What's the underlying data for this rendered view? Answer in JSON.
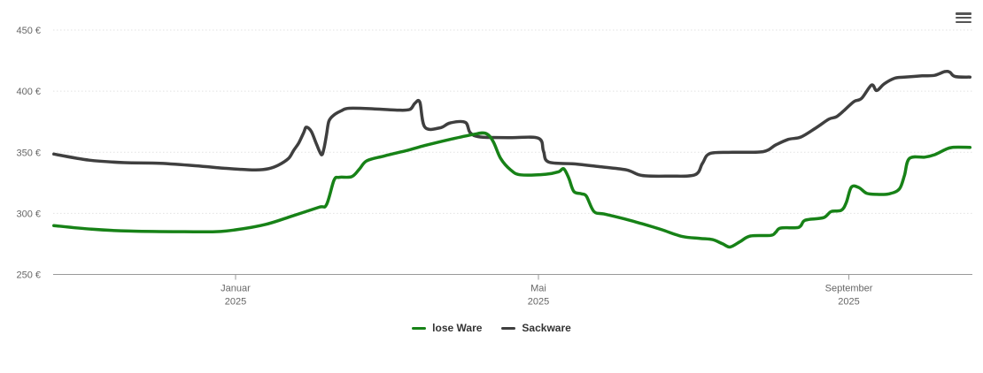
{
  "page": {
    "background": "#ffffff"
  },
  "toolbar": {
    "context_menu_icon": "hamburger-menu-icon"
  },
  "chart": {
    "y_axis": {
      "ticks": [
        {
          "label": "450 €",
          "value": 450
        },
        {
          "label": "400 €",
          "value": 400
        },
        {
          "label": "350 €",
          "value": 350
        },
        {
          "label": "300 €",
          "value": 300
        },
        {
          "label": "250 €",
          "value": 250
        }
      ]
    },
    "x_axis": {
      "ticks": [
        {
          "line1": "Januar",
          "line2": "2025",
          "date": "2025-01-01"
        },
        {
          "line1": "Mai",
          "line2": "2025",
          "date": "2025-05-01"
        },
        {
          "line1": "September",
          "line2": "2025",
          "date": "2025-09-01"
        }
      ]
    },
    "legend": {
      "items": [
        {
          "label": "lose Ware",
          "color": "#178217"
        },
        {
          "label": "Sackware",
          "color": "#3f3f3f"
        }
      ]
    },
    "colors": {
      "grid": "#e2e2e2",
      "axis_line": "#999999",
      "axis_text": "#666666",
      "legend_text": "#333333",
      "menu_icon": "#555555"
    }
  },
  "chart_data": {
    "type": "line",
    "title": "",
    "xlabel": "",
    "ylabel": "",
    "ylabel_format": "{value} €",
    "ylim": [
      250,
      450
    ],
    "x_range": [
      "2024-10-21",
      "2025-10-19"
    ],
    "grid": "dotted-horizontal",
    "legend_position": "bottom-center",
    "series": [
      {
        "name": "lose Ware",
        "color": "#178217",
        "points": [
          [
            "2024-10-21",
            290
          ],
          [
            "2024-11-05",
            287
          ],
          [
            "2024-11-20",
            285.5
          ],
          [
            "2024-12-08",
            285
          ],
          [
            "2024-12-24",
            285
          ],
          [
            "2025-01-01",
            286.5
          ],
          [
            "2025-01-13",
            291
          ],
          [
            "2025-01-23",
            297.5
          ],
          [
            "2025-02-03",
            305
          ],
          [
            "2025-02-06",
            307
          ],
          [
            "2025-02-09",
            327
          ],
          [
            "2025-02-11",
            329.5
          ],
          [
            "2025-02-16",
            330
          ],
          [
            "2025-02-19",
            336
          ],
          [
            "2025-02-22",
            343
          ],
          [
            "2025-03-01",
            347
          ],
          [
            "2025-03-10",
            351.5
          ],
          [
            "2025-03-17",
            355.5
          ],
          [
            "2025-03-27",
            360.5
          ],
          [
            "2025-04-05",
            364.5
          ],
          [
            "2025-04-10",
            365.5
          ],
          [
            "2025-04-13",
            359
          ],
          [
            "2025-04-16",
            345
          ],
          [
            "2025-04-20",
            335.5
          ],
          [
            "2025-04-24",
            331.5
          ],
          [
            "2025-05-04",
            332
          ],
          [
            "2025-05-09",
            334
          ],
          [
            "2025-05-11",
            336.5
          ],
          [
            "2025-05-13",
            329
          ],
          [
            "2025-05-15",
            318
          ],
          [
            "2025-05-18",
            316
          ],
          [
            "2025-05-20",
            314
          ],
          [
            "2025-05-23",
            301.5
          ],
          [
            "2025-05-27",
            299.5
          ],
          [
            "2025-06-04",
            295.5
          ],
          [
            "2025-06-11",
            291.5
          ],
          [
            "2025-06-19",
            286.5
          ],
          [
            "2025-06-27",
            281
          ],
          [
            "2025-07-04",
            279.5
          ],
          [
            "2025-07-09",
            278.5
          ],
          [
            "2025-07-13",
            275
          ],
          [
            "2025-07-16",
            272.5
          ],
          [
            "2025-07-20",
            277
          ],
          [
            "2025-07-24",
            281.5
          ],
          [
            "2025-08-01",
            282
          ],
          [
            "2025-08-03",
            284.5
          ],
          [
            "2025-08-05",
            288
          ],
          [
            "2025-08-12",
            288.5
          ],
          [
            "2025-08-14",
            293.5
          ],
          [
            "2025-08-16",
            295
          ],
          [
            "2025-08-22",
            296.5
          ],
          [
            "2025-08-25",
            301.5
          ],
          [
            "2025-08-29",
            302.5
          ],
          [
            "2025-08-31",
            309
          ],
          [
            "2025-09-02",
            321.5
          ],
          [
            "2025-09-05",
            321
          ],
          [
            "2025-09-08",
            316.5
          ],
          [
            "2025-09-12",
            315.5
          ],
          [
            "2025-09-17",
            316
          ],
          [
            "2025-09-21",
            320
          ],
          [
            "2025-09-23",
            331
          ],
          [
            "2025-09-25",
            345
          ],
          [
            "2025-10-01",
            346
          ],
          [
            "2025-10-05",
            348
          ],
          [
            "2025-10-09",
            352
          ],
          [
            "2025-10-12",
            354
          ],
          [
            "2025-10-19",
            354
          ]
        ]
      },
      {
        "name": "Sackware",
        "color": "#3f3f3f",
        "points": [
          [
            "2024-10-21",
            348.5
          ],
          [
            "2024-11-04",
            343.5
          ],
          [
            "2024-11-18",
            341.5
          ],
          [
            "2024-12-02",
            341
          ],
          [
            "2024-12-16",
            339
          ],
          [
            "2024-12-27",
            337
          ],
          [
            "2025-01-03",
            336
          ],
          [
            "2025-01-09",
            335.5
          ],
          [
            "2025-01-14",
            336.5
          ],
          [
            "2025-01-18",
            339.5
          ],
          [
            "2025-01-22",
            345
          ],
          [
            "2025-01-24",
            351.5
          ],
          [
            "2025-01-26",
            357.5
          ],
          [
            "2025-01-28",
            366
          ],
          [
            "2025-01-29",
            370.5
          ],
          [
            "2025-01-31",
            367
          ],
          [
            "2025-02-02",
            357
          ],
          [
            "2025-02-04",
            348
          ],
          [
            "2025-02-05",
            353
          ],
          [
            "2025-02-06",
            364
          ],
          [
            "2025-02-07",
            375.5
          ],
          [
            "2025-02-09",
            380.5
          ],
          [
            "2025-02-12",
            384
          ],
          [
            "2025-02-15",
            386
          ],
          [
            "2025-02-25",
            385.5
          ],
          [
            "2025-03-06",
            384.5
          ],
          [
            "2025-03-11",
            385
          ],
          [
            "2025-03-13",
            390
          ],
          [
            "2025-03-15",
            391
          ],
          [
            "2025-03-17",
            370.5
          ],
          [
            "2025-03-23",
            370
          ],
          [
            "2025-03-27",
            374
          ],
          [
            "2025-04-02",
            374.5
          ],
          [
            "2025-04-04",
            366
          ],
          [
            "2025-04-08",
            362.5
          ],
          [
            "2025-04-20",
            362
          ],
          [
            "2025-05-01",
            361.5
          ],
          [
            "2025-05-03",
            351
          ],
          [
            "2025-05-05",
            342
          ],
          [
            "2025-05-15",
            340.5
          ],
          [
            "2025-05-26",
            338
          ],
          [
            "2025-06-05",
            335.5
          ],
          [
            "2025-06-11",
            331
          ],
          [
            "2025-06-22",
            330.5
          ],
          [
            "2025-07-02",
            331.5
          ],
          [
            "2025-07-05",
            341
          ],
          [
            "2025-07-08",
            349
          ],
          [
            "2025-07-17",
            350
          ],
          [
            "2025-07-29",
            350.5
          ],
          [
            "2025-08-03",
            356
          ],
          [
            "2025-08-08",
            360.5
          ],
          [
            "2025-08-13",
            362.5
          ],
          [
            "2025-08-19",
            370
          ],
          [
            "2025-08-24",
            377
          ],
          [
            "2025-08-27",
            379
          ],
          [
            "2025-08-30",
            384
          ],
          [
            "2025-09-03",
            391.5
          ],
          [
            "2025-09-06",
            394
          ],
          [
            "2025-09-10",
            405
          ],
          [
            "2025-09-12",
            400.5
          ],
          [
            "2025-09-15",
            406
          ],
          [
            "2025-09-19",
            410.5
          ],
          [
            "2025-09-23",
            411.5
          ],
          [
            "2025-09-30",
            412.5
          ],
          [
            "2025-10-05",
            413
          ],
          [
            "2025-10-09",
            416
          ],
          [
            "2025-10-11",
            415.5
          ],
          [
            "2025-10-13",
            412
          ],
          [
            "2025-10-19",
            411.5
          ]
        ]
      }
    ]
  }
}
